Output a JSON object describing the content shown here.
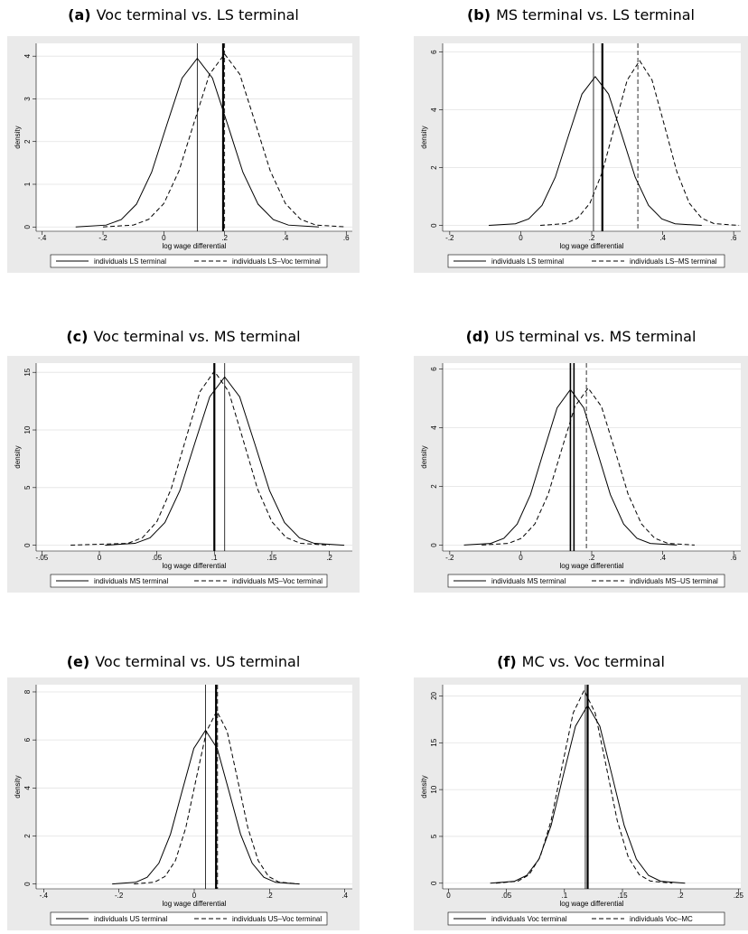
{
  "chart_data": [
    {
      "type": "line",
      "panel_label": "(a)",
      "title": "Voc terminal vs. LS terminal",
      "xlabel": "log wage differential",
      "ylabel": "density",
      "grid": true,
      "xlim": [
        -0.42,
        0.62
      ],
      "xticks": [
        {
          "value": -0.4,
          "label": "-.4"
        },
        {
          "value": -0.2,
          "label": "-.2"
        },
        0,
        {
          "value": 0.2,
          "label": ".2"
        },
        {
          "value": 0.4,
          "label": ".4"
        },
        {
          "value": 0.6,
          "label": ".6"
        }
      ],
      "ylim": [
        -0.1,
        4.3
      ],
      "yticks": [
        0,
        1,
        2,
        3,
        4
      ],
      "series": [
        {
          "name": "individuals LS terminal",
          "color": "#000000",
          "style": "solid",
          "x": [
            -0.29,
            -0.19,
            -0.14,
            -0.09,
            -0.04,
            0.01,
            0.06,
            0.11,
            0.16,
            0.21,
            0.26,
            0.31,
            0.36,
            0.41,
            0.51
          ],
          "values": [
            0.001,
            0.044,
            0.173,
            0.534,
            1.283,
            2.396,
            3.486,
            3.95,
            3.486,
            2.396,
            1.283,
            0.534,
            0.173,
            0.044,
            0.001
          ]
        },
        {
          "name": "individuals LS–Voc terminal",
          "color": "#000000",
          "style": "dashed",
          "x": [
            -0.2,
            -0.1,
            -0.05,
            0,
            0.05,
            0.1,
            0.15,
            0.2,
            0.25,
            0.3,
            0.35,
            0.4,
            0.45,
            0.5,
            0.6
          ],
          "values": [
            0.001,
            0.045,
            0.178,
            0.548,
            1.315,
            2.456,
            3.574,
            4.05,
            3.574,
            2.456,
            1.315,
            0.548,
            0.178,
            0.045,
            0.001
          ]
        }
      ],
      "vlines": [
        {
          "x": 0.11,
          "style": "solid",
          "width": 0.8
        },
        {
          "x": 0.195,
          "style": "solid",
          "width": 2.2
        },
        {
          "x": 0.2,
          "style": "dashed",
          "width": 0.8
        }
      ]
    },
    {
      "type": "line",
      "panel_label": "(b)",
      "title": "MS terminal vs. LS terminal",
      "xlabel": "log wage differential",
      "ylabel": "density",
      "grid": true,
      "xlim": [
        -0.22,
        0.62
      ],
      "xticks": [
        {
          "value": -0.2,
          "label": "-.2"
        },
        0,
        {
          "value": 0.2,
          "label": ".2"
        },
        {
          "value": 0.4,
          "label": ".4"
        },
        {
          "value": 0.6,
          "label": ".6"
        }
      ],
      "ylim": [
        -0.2,
        6.3
      ],
      "yticks": [
        0,
        2,
        4,
        6
      ],
      "series": [
        {
          "name": "individuals LS terminal",
          "color": "#000000",
          "style": "solid",
          "x": [
            -0.09,
            -0.015,
            0.0225,
            0.06,
            0.0975,
            0.135,
            0.1725,
            0.21,
            0.2475,
            0.285,
            0.3225,
            0.36,
            0.3975,
            0.435,
            0.51
          ],
          "values": [
            0.002,
            0.057,
            0.226,
            0.697,
            1.672,
            3.123,
            4.545,
            5.15,
            4.545,
            3.123,
            1.672,
            0.697,
            0.226,
            0.057,
            0.002
          ]
        },
        {
          "name": "individuals LS–MS terminal",
          "color": "#000000",
          "style": "dashed",
          "x": [
            0.055,
            0.125,
            0.16,
            0.195,
            0.23,
            0.265,
            0.3,
            0.335,
            0.37,
            0.405,
            0.44,
            0.475,
            0.51,
            0.545,
            0.615
          ],
          "values": [
            0.002,
            0.063,
            0.25,
            0.771,
            1.851,
            3.457,
            5.03,
            5.7,
            5.03,
            3.457,
            1.851,
            0.771,
            0.25,
            0.063,
            0.002
          ]
        }
      ],
      "vlines": [
        {
          "x": 0.205,
          "style": "solid",
          "width": 0.8
        },
        {
          "x": 0.23,
          "style": "solid",
          "width": 2.2
        },
        {
          "x": 0.33,
          "style": "dashed",
          "width": 0.8
        }
      ]
    },
    {
      "type": "line",
      "panel_label": "(c)",
      "title": "Voc terminal vs. MS terminal",
      "xlabel": "log wage differential",
      "ylabel": "density",
      "grid": true,
      "xlim": [
        -0.055,
        0.22
      ],
      "xticks": [
        {
          "value": -0.05,
          "label": "-.05"
        },
        0,
        {
          "value": 0.05,
          "label": ".05"
        },
        {
          "value": 0.1,
          "label": ".1"
        },
        {
          "value": 0.15,
          "label": ".15"
        },
        {
          "value": 0.2,
          "label": ".2"
        }
      ],
      "ylim": [
        -0.5,
        15.8
      ],
      "yticks": [
        0,
        5,
        10,
        15
      ],
      "series": [
        {
          "name": "individuals MS terminal",
          "color": "#000000",
          "style": "solid",
          "x": [
            0.005,
            0.031,
            0.044,
            0.057,
            0.07,
            0.083,
            0.096,
            0.109,
            0.122,
            0.135,
            0.148,
            0.161,
            0.174,
            0.187,
            0.213
          ],
          "values": [
            0.004,
            0.162,
            0.641,
            1.975,
            4.741,
            8.855,
            12.885,
            14.6,
            12.885,
            8.855,
            4.741,
            1.975,
            0.641,
            0.162,
            0.004
          ]
        },
        {
          "name": "individuals MS–Voc terminal",
          "color": "#000000",
          "style": "dashed",
          "x": [
            -0.025,
            0.025,
            0.0375,
            0.05,
            0.0625,
            0.075,
            0.0875,
            0.1,
            0.1125,
            0.125,
            0.1375,
            0.15,
            0.1625,
            0.175,
            0.2
          ],
          "values": [
            0.005,
            0.168,
            0.663,
            2.043,
            4.903,
            9.158,
            13.326,
            15.1,
            13.326,
            9.158,
            4.903,
            2.043,
            0.663,
            0.168,
            0.005
          ]
        }
      ],
      "vlines": [
        {
          "x": 0.1,
          "style": "solid",
          "width": 2.2
        },
        {
          "x": 0.109,
          "style": "solid",
          "width": 0.8
        }
      ]
    },
    {
      "type": "line",
      "panel_label": "(d)",
      "title": "US terminal vs. MS terminal",
      "xlabel": "log wage differential",
      "ylabel": "density",
      "grid": true,
      "xlim": [
        -0.22,
        0.62
      ],
      "xticks": [
        {
          "value": -0.2,
          "label": "-.2"
        },
        0,
        {
          "value": 0.2,
          "label": ".2"
        },
        {
          "value": 0.4,
          "label": ".4"
        },
        {
          "value": 0.6,
          "label": ".6"
        }
      ],
      "ylim": [
        -0.2,
        6.2
      ],
      "yticks": [
        0,
        2,
        4,
        6
      ],
      "series": [
        {
          "name": "individuals MS terminal",
          "color": "#000000",
          "style": "solid",
          "x": [
            -0.16,
            -0.085,
            -0.0475,
            -0.01,
            0.0275,
            0.065,
            0.1025,
            0.14,
            0.1775,
            0.215,
            0.2525,
            0.29,
            0.3275,
            0.365,
            0.44
          ],
          "values": [
            0.002,
            0.059,
            0.233,
            0.717,
            1.721,
            3.214,
            4.677,
            5.3,
            4.677,
            3.214,
            1.721,
            0.717,
            0.233,
            0.059,
            0.002
          ]
        },
        {
          "name": "individuals MS–US terminal",
          "color": "#000000",
          "style": "dashed",
          "x": [
            -0.11,
            -0.035,
            0.0025,
            0.04,
            0.0775,
            0.115,
            0.1525,
            0.19,
            0.2275,
            0.265,
            0.3025,
            0.34,
            0.3775,
            0.415,
            0.49
          ],
          "values": [
            0.002,
            0.059,
            0.235,
            0.724,
            1.737,
            3.245,
            4.721,
            5.35,
            4.721,
            3.245,
            1.737,
            0.724,
            0.235,
            0.059,
            0.002
          ]
        }
      ],
      "vlines": [
        {
          "x": 0.14,
          "style": "solid",
          "width": 1.6
        },
        {
          "x": 0.15,
          "style": "solid",
          "width": 1.6
        },
        {
          "x": 0.185,
          "style": "dashed",
          "width": 0.8
        }
      ]
    },
    {
      "type": "line",
      "panel_label": "(e)",
      "title": "Voc terminal vs. US terminal",
      "xlabel": "log wage differential",
      "ylabel": "density",
      "grid": true,
      "xlim": [
        -0.42,
        0.42
      ],
      "xticks": [
        {
          "value": -0.4,
          "label": "-.4"
        },
        {
          "value": -0.2,
          "label": "-.2"
        },
        0,
        {
          "value": 0.2,
          "label": ".2"
        },
        {
          "value": 0.4,
          "label": ".4"
        }
      ],
      "ylim": [
        -0.2,
        8.3
      ],
      "yticks": [
        0,
        2,
        4,
        6,
        8
      ],
      "series": [
        {
          "name": "individuals US terminal",
          "color": "#000000",
          "style": "solid",
          "x": [
            -0.218,
            -0.156,
            -0.125,
            -0.094,
            -0.063,
            -0.032,
            -0.001,
            0.03,
            0.061,
            0.092,
            0.123,
            0.154,
            0.185,
            0.216,
            0.278
          ],
          "values": [
            0.002,
            0.071,
            0.281,
            0.866,
            2.078,
            3.882,
            5.648,
            6.4,
            5.648,
            3.882,
            2.078,
            0.866,
            0.281,
            0.071,
            0.002
          ]
        },
        {
          "name": "individuals US–Voc terminal",
          "color": "#000000",
          "style": "dashed",
          "x": [
            -0.16,
            -0.105,
            -0.0775,
            -0.05,
            -0.0225,
            0.005,
            0.0325,
            0.06,
            0.0875,
            0.115,
            0.1425,
            0.17,
            0.1975,
            0.225,
            0.28
          ],
          "values": [
            0.002,
            0.08,
            0.316,
            0.974,
            2.338,
            4.367,
            6.354,
            7.2,
            6.354,
            4.367,
            2.338,
            0.974,
            0.316,
            0.08,
            0.002
          ]
        }
      ],
      "vlines": [
        {
          "x": 0.03,
          "style": "solid",
          "width": 0.8
        },
        {
          "x": 0.058,
          "style": "solid",
          "width": 2.2
        },
        {
          "x": 0.062,
          "style": "dashed",
          "width": 0.8
        }
      ]
    },
    {
      "type": "line",
      "panel_label": "(f)",
      "title": "MC vs. Voc terminal",
      "xlabel": "log wage differential",
      "ylabel": "density",
      "grid": true,
      "xlim": [
        -0.005,
        0.252
      ],
      "xticks": [
        0,
        {
          "value": 0.05,
          "label": ".05"
        },
        {
          "value": 0.1,
          "label": ".1"
        },
        {
          "value": 0.15,
          "label": ".15"
        },
        {
          "value": 0.2,
          "label": ".2"
        },
        {
          "value": 0.25,
          "label": ".25"
        }
      ],
      "ylim": [
        -0.6,
        21.2
      ],
      "yticks": [
        0,
        5,
        10,
        15,
        20
      ],
      "series": [
        {
          "name": "individuals Voc terminal",
          "color": "#000000",
          "style": "solid",
          "x": [
            0.036,
            0.057,
            0.0675,
            0.078,
            0.0885,
            0.099,
            0.1095,
            0.12,
            0.1305,
            0.141,
            0.1515,
            0.162,
            0.1725,
            0.183,
            0.204
          ],
          "values": [
            0.006,
            0.211,
            0.834,
            2.571,
            6.169,
            11.524,
            16.768,
            19,
            16.768,
            11.524,
            6.169,
            2.571,
            0.834,
            0.211,
            0.006
          ]
        },
        {
          "name": "individuals Voc–MC",
          "color": "#000000",
          "style": "dashed",
          "x": [
            0.041,
            0.06,
            0.0695,
            0.079,
            0.0885,
            0.098,
            0.1075,
            0.117,
            0.1265,
            0.136,
            0.1455,
            0.155,
            0.1645,
            0.174,
            0.193
          ],
          "values": [
            0.006,
            0.229,
            0.904,
            2.787,
            6.689,
            12.494,
            18.18,
            20.6,
            18.18,
            12.494,
            6.689,
            2.787,
            0.904,
            0.229,
            0.006
          ]
        }
      ],
      "vlines": [
        {
          "x": 0.118,
          "style": "solid",
          "width": 0.8
        },
        {
          "x": 0.12,
          "style": "solid",
          "width": 2.2
        }
      ]
    }
  ]
}
